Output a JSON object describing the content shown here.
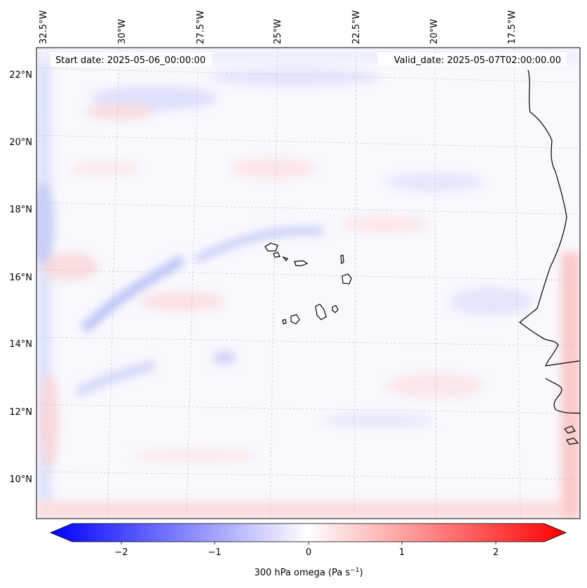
{
  "map": {
    "start_date_text": "Start date: 2025-05-06_00:00:00",
    "valid_date_text": "Valid_date: 2025-05-07T02:00:00.00",
    "lon_labels": [
      "32.5°W",
      "30°W",
      "27.5°W",
      "25°W",
      "22.5°W",
      "20°W",
      "17.5°W"
    ],
    "lat_labels": [
      "22°N",
      "20°N",
      "18°N",
      "16°N",
      "14°N",
      "12°N",
      "10°N"
    ],
    "colormap": [
      "#0000ff",
      "#ffffff",
      "#ff0000"
    ]
  },
  "colorbar": {
    "label": "300 hPa omega (Pa s",
    "label_sup": "−1",
    "label_close": ")",
    "ticks": [
      "−2",
      "−1",
      "0",
      "1",
      "2"
    ]
  }
}
